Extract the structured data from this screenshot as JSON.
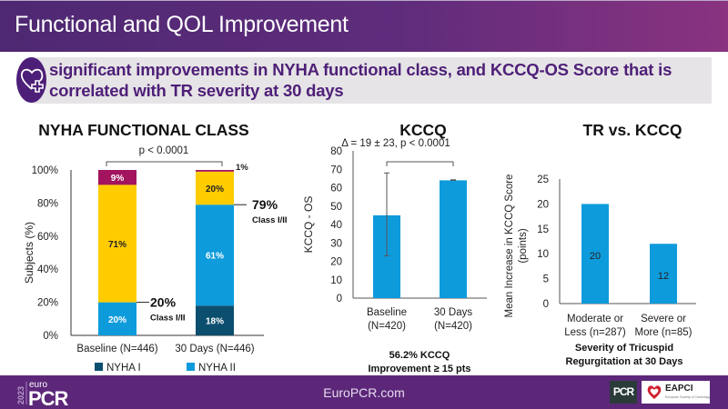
{
  "header": {
    "title": "Functional and QOL Improvement"
  },
  "banner": {
    "icon": "heart-plus-icon",
    "text": "significant improvements in NYHA functional class, and KCCQ-OS Score that is correlated with TR severity at 30 days"
  },
  "footer": {
    "logo_year": "2023",
    "logo_small": "euro",
    "logo_big": "PCR",
    "url": "EuroPCR.com",
    "pcr_badge": "PCR",
    "eapci_badge": "EAPCI",
    "eapci_sub": "European Society of Cardiology"
  },
  "colors": {
    "nyha1": "#0b4e6e",
    "nyha2": "#0e9bdc",
    "nyha3": "#ffcc00",
    "nyha4": "#a2145e",
    "bar_blue": "#0e9bdc",
    "purple": "#5c2779"
  },
  "chart_data": [
    {
      "type": "bar",
      "stacked": true,
      "title": "NYHA FUNCTIONAL CLASS",
      "ylabel": "Subjects  (%)",
      "xlabel": "",
      "ylim": [
        0,
        100
      ],
      "yticks": [
        "0%",
        "20%",
        "40%",
        "60%",
        "80%",
        "100%"
      ],
      "categories": [
        "Baseline (N=446)",
        "30 Days (N=446)"
      ],
      "series": [
        {
          "name": "NYHA I",
          "values": [
            0,
            18
          ],
          "labels": [
            "",
            "18%"
          ],
          "label_color": "#ffffff"
        },
        {
          "name": "NYHA II",
          "values": [
            20,
            61
          ],
          "labels": [
            "20%",
            "61%"
          ],
          "label_color": "#ffffff"
        },
        {
          "name": "NYHA III",
          "values": [
            71,
            20
          ],
          "labels": [
            "71%",
            "20%"
          ],
          "label_color": "#222222"
        },
        {
          "name": "NYHA IV",
          "values": [
            9,
            1
          ],
          "labels": [
            "9%",
            ""
          ],
          "label_color": "#ffffff"
        }
      ],
      "legend": [
        "NYHA I",
        "NYHA II"
      ],
      "legend_position": "bottom",
      "annotations": {
        "pvalue": "p < 0.0001",
        "baseline_class": {
          "value": "20%",
          "label": "Class I/II"
        },
        "followup_class": {
          "value": "79%",
          "label": "Class I/II"
        },
        "followup_top": "1%"
      }
    },
    {
      "type": "bar",
      "title": "KCCQ",
      "subtitle": "Δ = 19 ± 23, p < 0.0001",
      "ylabel": "KCCQ - OS",
      "ylim": [
        0,
        80
      ],
      "yticks": [
        "0",
        "10",
        "20",
        "30",
        "40",
        "50",
        "60",
        "70",
        "80"
      ],
      "categories": [
        [
          "Baseline",
          "(N=420)"
        ],
        [
          "30 Days",
          "(N=420)"
        ]
      ],
      "values": [
        45,
        64
      ],
      "error": [
        [
          23,
          68
        ],
        [
          64,
          64.3
        ]
      ],
      "footnote": [
        "56.2% KCCQ",
        "Improvement ≥ 15 pts"
      ]
    },
    {
      "type": "bar",
      "title": "TR vs. KCCQ",
      "ylabel": [
        "Mean Increase in KCCQ  Score",
        "(points)"
      ],
      "ylim": [
        0,
        25
      ],
      "yticks": [
        "0",
        "5",
        "10",
        "15",
        "20",
        "25"
      ],
      "categories": [
        [
          "Moderate or",
          "Less (n=287)"
        ],
        [
          "Severe or",
          "More (n=85)"
        ]
      ],
      "values": [
        20,
        12
      ],
      "data_labels": [
        "20",
        "12"
      ],
      "xlabel": [
        "Severity of Tricuspid",
        "Regurgitation at 30 Days"
      ]
    }
  ]
}
